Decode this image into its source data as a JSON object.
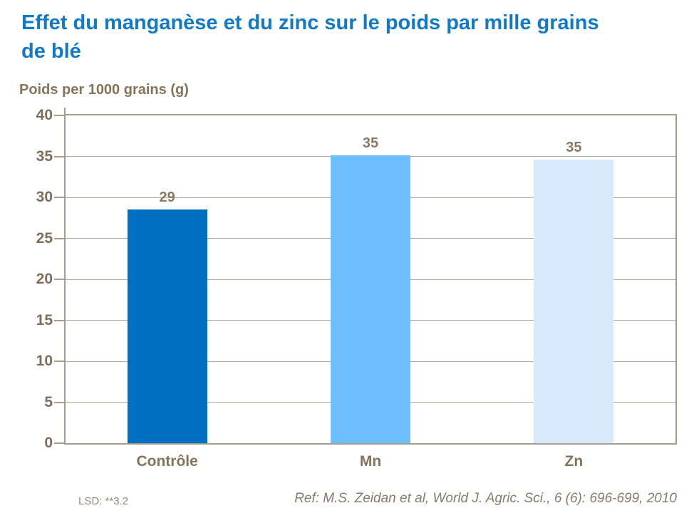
{
  "title": "Effet du manganèse et du zinc sur le poids par mille grains de blé",
  "footer": {
    "lsd": "LSD: **3.2",
    "ref": "Ref: M.S. Zeidan et al, World J. Agric. Sci., 6 (6): 696-699, 2010"
  },
  "colors": {
    "title_text": "#0E7AC8",
    "axis_text": "#857459",
    "tick_label_text": "#7E6E59",
    "data_label_text": "#8A7963",
    "gridline": "#B3A999",
    "plot_border": "#A79D8F",
    "footer_text": "#8A7A6A"
  },
  "chart_data": {
    "type": "bar",
    "title": "Effet du manganèse et du zinc sur le poids par mille grains de blé",
    "categories": [
      "Contrôle",
      "Mn",
      "Zn"
    ],
    "values": [
      29,
      35,
      35
    ],
    "data_labels": [
      "29",
      "35",
      "35"
    ],
    "bar_display_values": [
      28.5,
      35.1,
      34.6
    ],
    "bar_colors": [
      "#0071C2",
      "#6CBEFF",
      "#D7EAFC"
    ],
    "xlabel": "",
    "ylabel": "Poids per 1000 grains (g)",
    "ylim": [
      0,
      40
    ],
    "yticks": [
      0,
      5,
      10,
      15,
      20,
      25,
      30,
      35,
      40
    ],
    "grid": true,
    "legend": false
  }
}
